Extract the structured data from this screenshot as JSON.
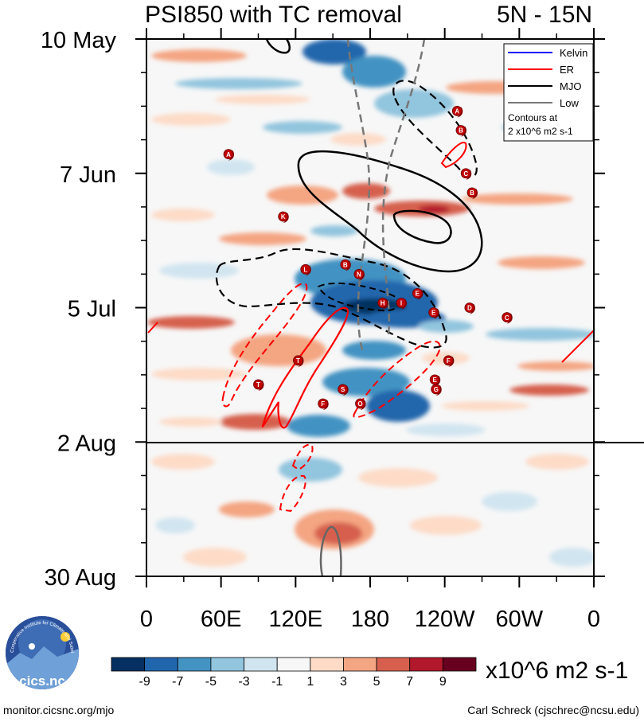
{
  "chart_data": {
    "type": "heatmap",
    "title": "PSI850 with TC removal",
    "region": "5N - 15N",
    "y_tick_labels": [
      "10 May",
      "7 Jun",
      "5 Jul",
      "2 Aug",
      "30 Aug"
    ],
    "x_tick_labels": [
      "0",
      "60E",
      "120E",
      "180",
      "120W",
      "60W",
      "0"
    ],
    "x_range_deg": [
      0,
      360
    ],
    "colorbar": {
      "labels": [
        "-9",
        "-7",
        "-5",
        "-3",
        "-1",
        "1",
        "3",
        "5",
        "7",
        "9"
      ],
      "units": "x10^6 m2 s-1",
      "colors": [
        "#053061",
        "#2166ac",
        "#4393c3",
        "#92c5de",
        "#d1e5f0",
        "#f7f7f7",
        "#fddbc7",
        "#f4a582",
        "#d6604d",
        "#b2182b",
        "#67001f"
      ]
    },
    "legend": {
      "position": "top-right",
      "entries": [
        {
          "name": "Kelvin",
          "color": "#0000ff"
        },
        {
          "name": "ER",
          "color": "#ff0000"
        },
        {
          "name": "MJO",
          "color": "#000000"
        },
        {
          "name": "Low",
          "color": "#777777"
        }
      ],
      "note_line1": "Contours at",
      "note_line2": "2 x10^6 m2 s-1"
    },
    "tc_markers": [
      {
        "letter": "A",
        "lon": 66,
        "day": 24
      },
      {
        "letter": "A",
        "lon": 250,
        "day": 15
      },
      {
        "letter": "B",
        "lon": 253,
        "day": 19
      },
      {
        "letter": "C",
        "lon": 257,
        "day": 28
      },
      {
        "letter": "B",
        "lon": 262,
        "day": 32
      },
      {
        "letter": "K",
        "lon": 110,
        "day": 37
      },
      {
        "letter": "B",
        "lon": 160,
        "day": 47
      },
      {
        "letter": "L",
        "lon": 128,
        "day": 48
      },
      {
        "letter": "N",
        "lon": 171,
        "day": 49
      },
      {
        "letter": "E",
        "lon": 218,
        "day": 53
      },
      {
        "letter": "H",
        "lon": 190,
        "day": 55
      },
      {
        "letter": "I",
        "lon": 205,
        "day": 55
      },
      {
        "letter": "D",
        "lon": 260,
        "day": 56
      },
      {
        "letter": "E",
        "lon": 231,
        "day": 57
      },
      {
        "letter": "C",
        "lon": 290,
        "day": 58
      },
      {
        "letter": "T",
        "lon": 122,
        "day": 67
      },
      {
        "letter": "F",
        "lon": 243,
        "day": 67
      },
      {
        "letter": "E",
        "lon": 232,
        "day": 71
      },
      {
        "letter": "T",
        "lon": 90,
        "day": 72
      },
      {
        "letter": "S",
        "lon": 158,
        "day": 73
      },
      {
        "letter": "G",
        "lon": 233,
        "day": 73
      },
      {
        "letter": "F",
        "lon": 142,
        "day": 76
      },
      {
        "letter": "O",
        "lon": 172,
        "day": 76
      }
    ]
  },
  "footer": {
    "logo_text": "cics.nc",
    "logo_arc_text": "Cooperative Institute for Climate and Satellites",
    "left": "monitor.cicsnc.org/mjo",
    "right": "Carl Schreck (cjschrec@ncsu.edu)"
  }
}
